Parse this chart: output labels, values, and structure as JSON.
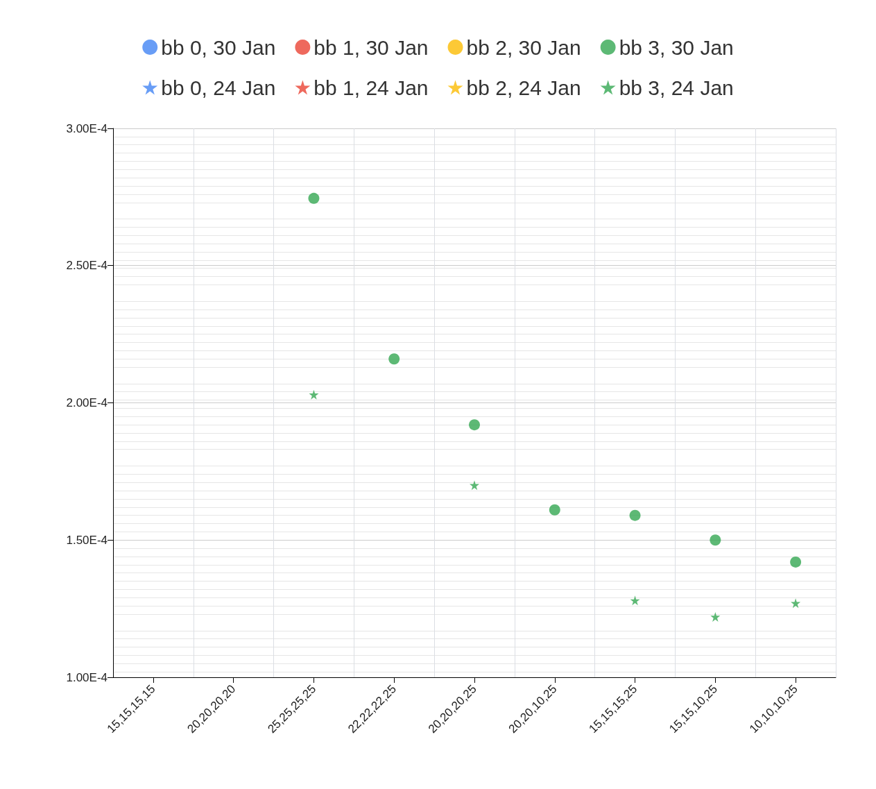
{
  "chart_data": {
    "type": "scatter",
    "categories": [
      "15,15,15,15",
      "20,20,20,20",
      "25,25,25,25",
      "22,22,22,25",
      "20,20,20,25",
      "20,20,10,25",
      "15,15,15,25",
      "15,15,10,25",
      "10,10,10,25"
    ],
    "series": [
      {
        "name": "bb 0, 30 Jan",
        "color": "#4285f4",
        "marker": "circle",
        "values": [
          null,
          null,
          null,
          null,
          null,
          null,
          null,
          null,
          null
        ]
      },
      {
        "name": "bb 1, 30 Jan",
        "color": "#ea4335",
        "marker": "circle",
        "values": [
          null,
          null,
          null,
          null,
          null,
          null,
          null,
          null,
          null
        ]
      },
      {
        "name": "bb 2, 30 Jan",
        "color": "#fbbc04",
        "marker": "circle",
        "values": [
          null,
          null,
          null,
          null,
          null,
          null,
          null,
          null,
          null
        ]
      },
      {
        "name": "bb 3, 30 Jan",
        "color": "#34a853",
        "marker": "circle",
        "values": [
          null,
          null,
          0.0002745,
          0.000216,
          0.000192,
          0.000161,
          0.000159,
          0.00015,
          0.000142
        ]
      },
      {
        "name": "bb 0, 24 Jan",
        "color": "#4285f4",
        "marker": "star",
        "values": [
          null,
          null,
          null,
          null,
          null,
          null,
          null,
          null,
          null
        ]
      },
      {
        "name": "bb 1, 24 Jan",
        "color": "#ea4335",
        "marker": "star",
        "values": [
          null,
          null,
          null,
          null,
          null,
          null,
          null,
          null,
          null
        ]
      },
      {
        "name": "bb 2, 24 Jan",
        "color": "#fbbc04",
        "marker": "star",
        "values": [
          null,
          null,
          null,
          null,
          null,
          null,
          null,
          null,
          null
        ]
      },
      {
        "name": "bb 3, 24 Jan",
        "color": "#34a853",
        "marker": "star",
        "values": [
          null,
          null,
          0.000203,
          null,
          0.00017,
          null,
          0.000128,
          0.000122,
          0.000127
        ]
      }
    ],
    "ylim": [
      0.0001,
      0.0003
    ],
    "yticks": [
      {
        "value": 0.0001,
        "label": "1.00E-4"
      },
      {
        "value": 0.00015,
        "label": "1.50E-4"
      },
      {
        "value": 0.0002,
        "label": "2.00E-4"
      },
      {
        "value": 0.00025,
        "label": "2.50E-4"
      },
      {
        "value": 0.0003,
        "label": "3.00E-4"
      }
    ],
    "grid": true,
    "legend": "top"
  }
}
